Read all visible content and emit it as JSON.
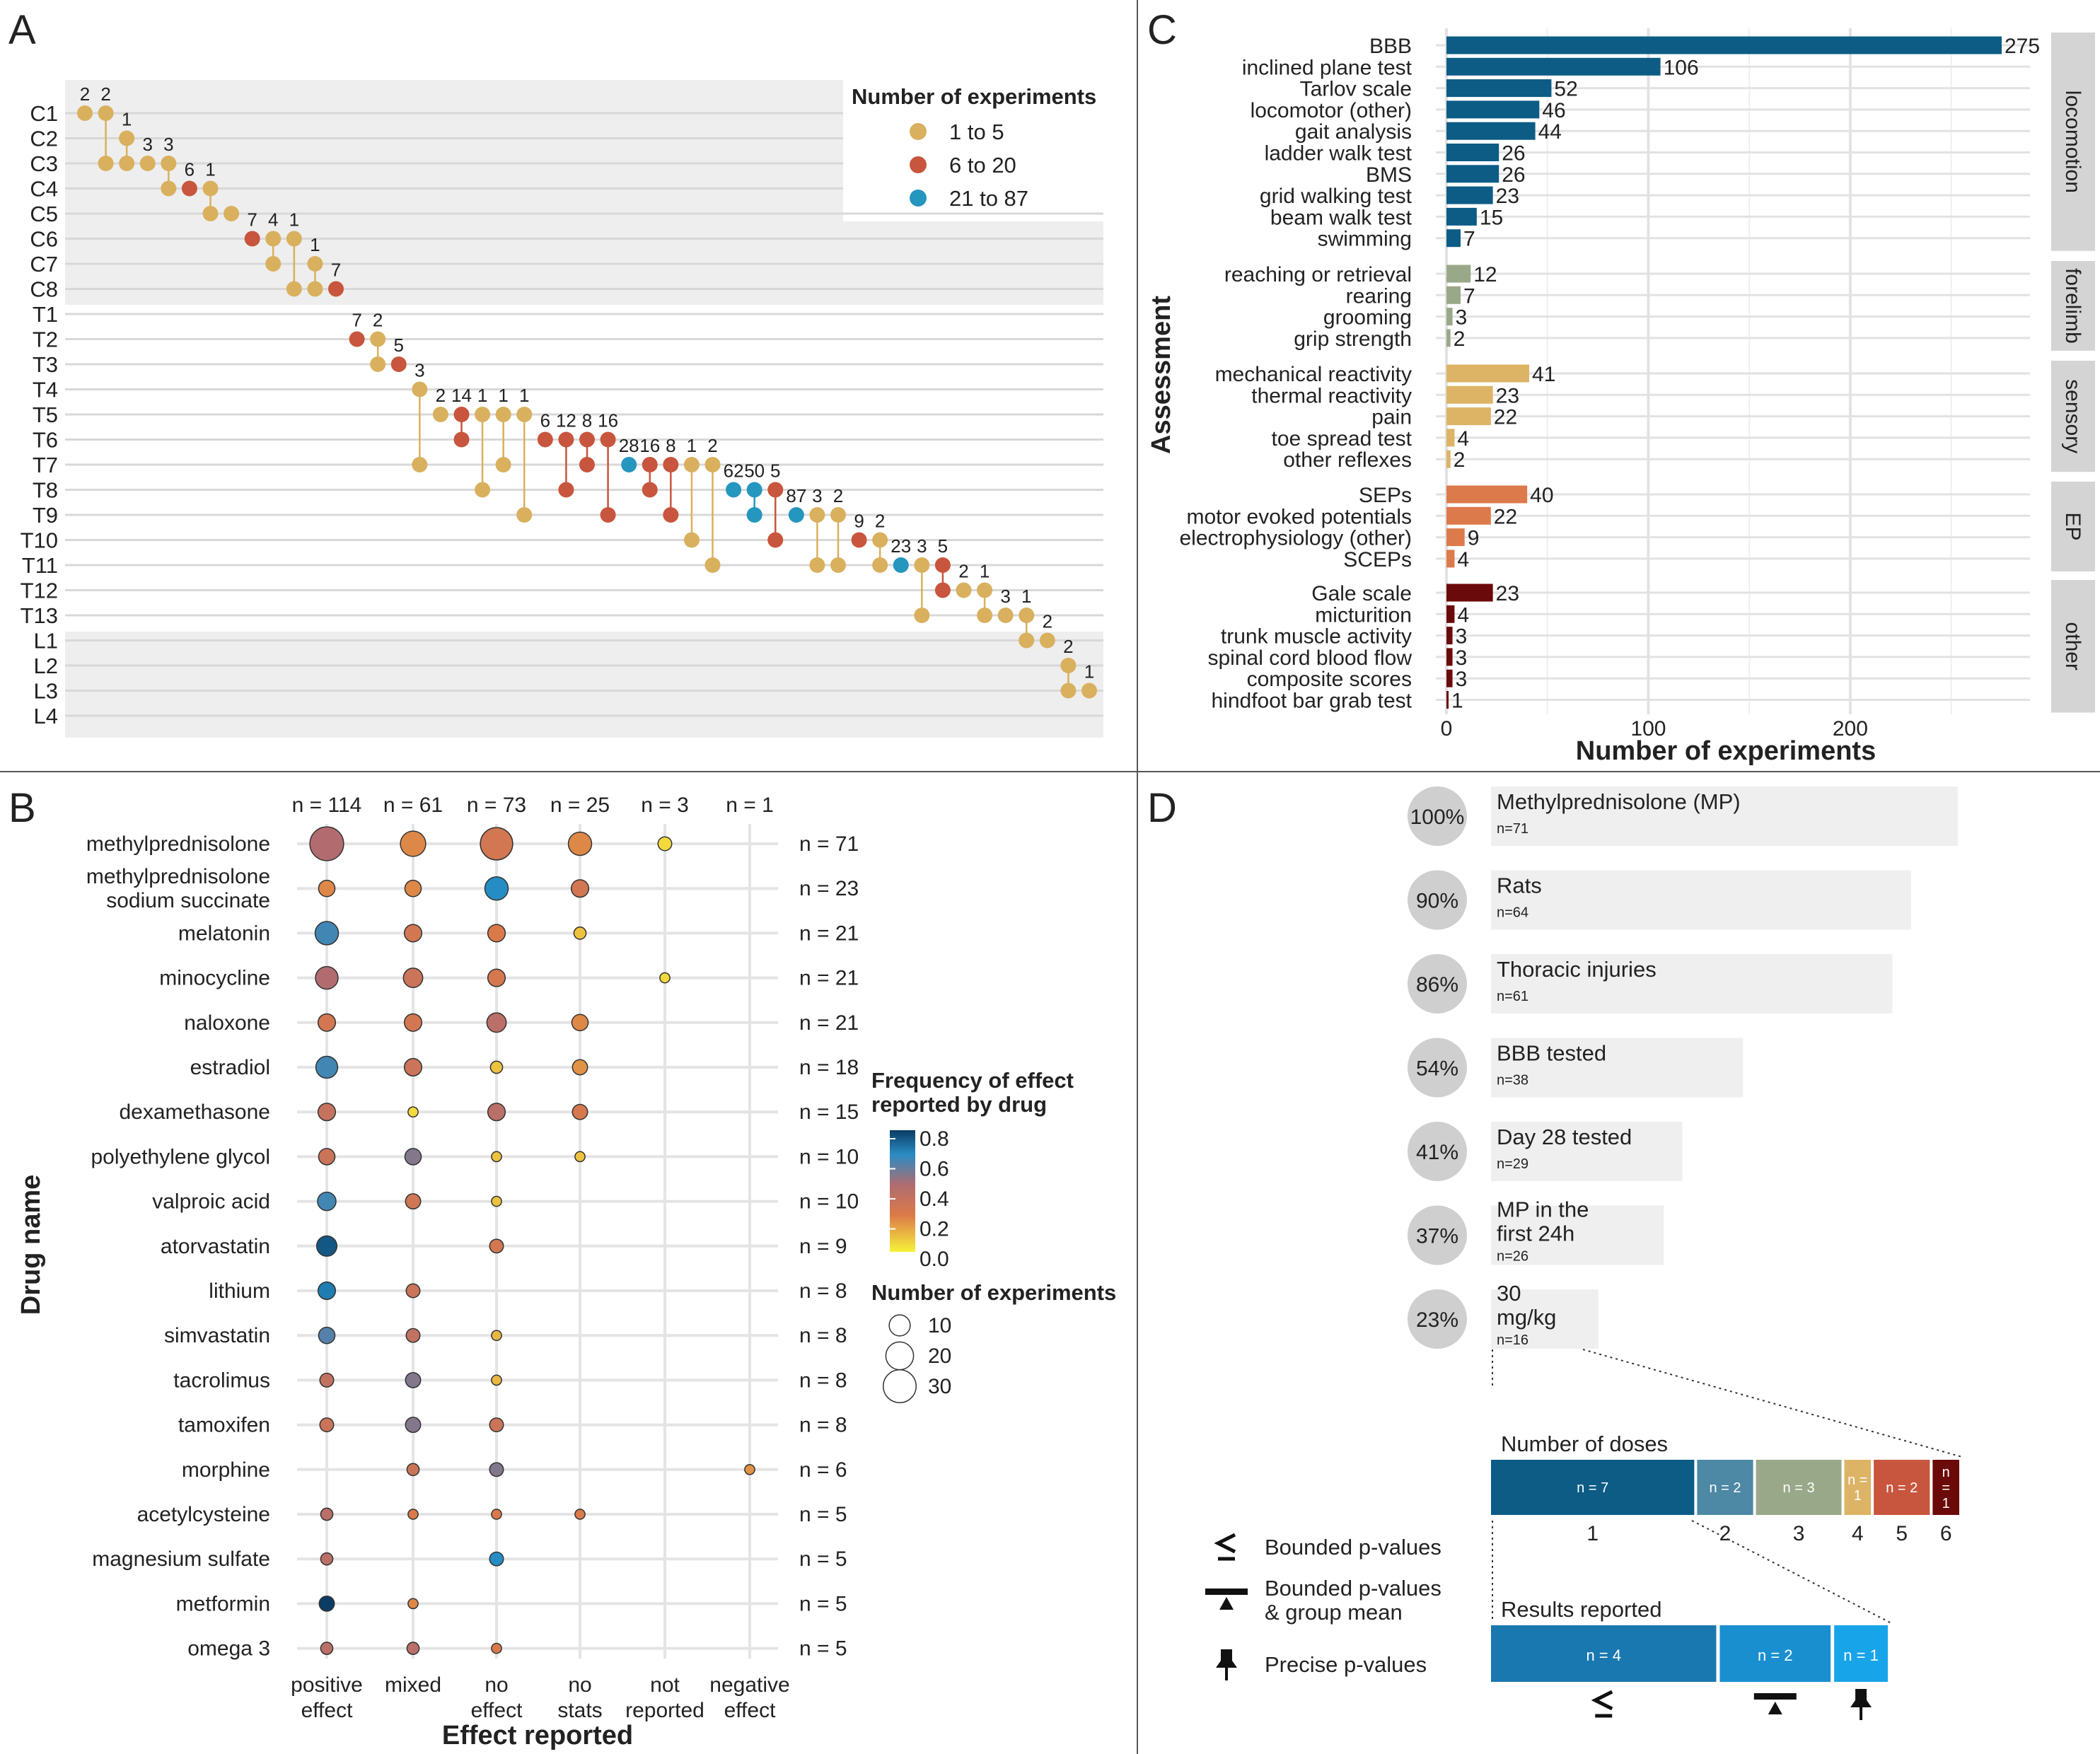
{
  "panel_labels": [
    "A",
    "B",
    "C",
    "D"
  ],
  "colors": {
    "tan": "#d9b05e",
    "rust": "#c8553d",
    "teal": "#2596be",
    "locomotion": "#0c5c86",
    "forelimb": "#9aa88a",
    "sensory": "#ddb366",
    "EP": "#dd7a4b",
    "other": "#6b0a0a",
    "grey_band": "#eeeeee",
    "strip": "#d4d4d4",
    "gridline": "#d8d8d8"
  },
  "chart_data": [
    {
      "panel": "A",
      "type": "scatter",
      "y_categories": [
        "C1",
        "C2",
        "C3",
        "C4",
        "C5",
        "C6",
        "C7",
        "C8",
        "T1",
        "T2",
        "T3",
        "T4",
        "T5",
        "T6",
        "T7",
        "T8",
        "T9",
        "T10",
        "T11",
        "T12",
        "T13",
        "L1",
        "L2",
        "L3",
        "L4"
      ],
      "legend_title": "Number of experiments",
      "legend_items": [
        {
          "label": "1 to 5",
          "color": "#d9b05e"
        },
        {
          "label": "6 to 20",
          "color": "#c8553d"
        },
        {
          "label": "21 to 87",
          "color": "#2596be"
        }
      ],
      "points": [
        {
          "label": "2",
          "levels": [
            "C1"
          ],
          "cls": 1
        },
        {
          "label": "2",
          "levels": [
            "C1",
            "C3"
          ],
          "cls": 1
        },
        {
          "label": "1",
          "levels": [
            "C2",
            "C3"
          ],
          "cls": 1
        },
        {
          "label": "3",
          "levels": [
            "C3"
          ],
          "cls": 1
        },
        {
          "label": "3",
          "levels": [
            "C3",
            "C4"
          ],
          "cls": 1
        },
        {
          "label": "6",
          "levels": [
            "C4"
          ],
          "cls": 2
        },
        {
          "label": "1",
          "levels": [
            "C4",
            "C5"
          ],
          "cls": 1
        },
        {
          "label": "",
          "levels": [
            "C5"
          ],
          "cls": 1
        },
        {
          "label": "7",
          "levels": [
            "C6"
          ],
          "cls": 2
        },
        {
          "label": "4",
          "levels": [
            "C6",
            "C7"
          ],
          "cls": 1
        },
        {
          "label": "1",
          "levels": [
            "C6",
            "C8"
          ],
          "cls": 1
        },
        {
          "label": "1",
          "levels": [
            "C7",
            "C8"
          ],
          "cls": 1
        },
        {
          "label": "7",
          "levels": [
            "C8"
          ],
          "cls": 2
        },
        {
          "label": "7",
          "levels": [
            "T2"
          ],
          "cls": 2
        },
        {
          "label": "2",
          "levels": [
            "T2",
            "T3"
          ],
          "cls": 1
        },
        {
          "label": "5",
          "levels": [
            "T3"
          ],
          "cls": 2
        },
        {
          "label": "3",
          "levels": [
            "T4",
            "T7"
          ],
          "cls": 1
        },
        {
          "label": "2",
          "levels": [
            "T5"
          ],
          "cls": 1
        },
        {
          "label": "14",
          "levels": [
            "T5",
            "T6"
          ],
          "cls": 2
        },
        {
          "label": "1",
          "levels": [
            "T5",
            "T8"
          ],
          "cls": 1
        },
        {
          "label": "1",
          "levels": [
            "T5",
            "T7"
          ],
          "cls": 1
        },
        {
          "label": "1",
          "levels": [
            "T5",
            "T9"
          ],
          "cls": 1
        },
        {
          "label": "6",
          "levels": [
            "T6"
          ],
          "cls": 2
        },
        {
          "label": "12",
          "levels": [
            "T6",
            "T8"
          ],
          "cls": 2
        },
        {
          "label": "8",
          "levels": [
            "T6",
            "T7"
          ],
          "cls": 2
        },
        {
          "label": "16",
          "levels": [
            "T6",
            "T9"
          ],
          "cls": 2
        },
        {
          "label": "28",
          "levels": [
            "T7"
          ],
          "cls": 3
        },
        {
          "label": "16",
          "levels": [
            "T7",
            "T8"
          ],
          "cls": 2
        },
        {
          "label": "8",
          "levels": [
            "T7",
            "T9"
          ],
          "cls": 2
        },
        {
          "label": "1",
          "levels": [
            "T7",
            "T10"
          ],
          "cls": 1
        },
        {
          "label": "2",
          "levels": [
            "T7",
            "T11"
          ],
          "cls": 1
        },
        {
          "label": "62",
          "levels": [
            "T8"
          ],
          "cls": 3
        },
        {
          "label": "50",
          "levels": [
            "T8",
            "T9"
          ],
          "cls": 3
        },
        {
          "label": "5",
          "levels": [
            "T8",
            "T10"
          ],
          "cls": 2
        },
        {
          "label": "87",
          "levels": [
            "T9"
          ],
          "cls": 3
        },
        {
          "label": "3",
          "levels": [
            "T9",
            "T11"
          ],
          "cls": 1
        },
        {
          "label": "2",
          "levels": [
            "T9",
            "T11"
          ],
          "cls": 1
        },
        {
          "label": "9",
          "levels": [
            "T10"
          ],
          "cls": 2
        },
        {
          "label": "2",
          "levels": [
            "T10",
            "T11"
          ],
          "cls": 1
        },
        {
          "label": "23",
          "levels": [
            "T11"
          ],
          "cls": 3
        },
        {
          "label": "3",
          "levels": [
            "T11",
            "T13"
          ],
          "cls": 1
        },
        {
          "label": "5",
          "levels": [
            "T11",
            "T12"
          ],
          "cls": 2
        },
        {
          "label": "2",
          "levels": [
            "T12"
          ],
          "cls": 1
        },
        {
          "label": "1",
          "levels": [
            "T12",
            "T13"
          ],
          "cls": 1
        },
        {
          "label": "3",
          "levels": [
            "T13"
          ],
          "cls": 1
        },
        {
          "label": "1",
          "levels": [
            "T13",
            "L1"
          ],
          "cls": 1
        },
        {
          "label": "2",
          "levels": [
            "L1"
          ],
          "cls": 1
        },
        {
          "label": "2",
          "levels": [
            "L2",
            "L3"
          ],
          "cls": 1
        },
        {
          "label": "1",
          "levels": [
            "L3"
          ],
          "cls": 1
        }
      ]
    },
    {
      "panel": "B",
      "type": "scatter",
      "xlabel": "Effect reported",
      "ylabel": "Drug name",
      "x_categories": [
        "positive\neffect",
        "mixed",
        "no\neffect",
        "no\nstats",
        "not\nreported",
        "negative\neffect"
      ],
      "col_n": [
        "n = 114",
        "n = 61",
        "n = 73",
        "n = 25",
        "n = 3",
        "n = 1"
      ],
      "drugs": [
        "methylprednisolone",
        "methylprednisolone\nsodium succinate",
        "melatonin",
        "minocycline",
        "naloxone",
        "estradiol",
        "dexamethasone",
        "polyethylene glycol",
        "valproic acid",
        "atorvastatin",
        "lithium",
        "simvastatin",
        "tacrolimus",
        "tamoxifen",
        "morphine",
        "acetylcysteine",
        "magnesium sulfate",
        "metformin",
        "omega 3"
      ],
      "row_n": [
        "n = 71",
        "n = 23",
        "n = 21",
        "n = 21",
        "n = 21",
        "n = 18",
        "n = 15",
        "n = 10",
        "n = 10",
        "n = 9",
        "n = 8",
        "n = 8",
        "n = 8",
        "n = 8",
        "n = 6",
        "n = 5",
        "n = 5",
        "n = 5",
        "n = 5"
      ],
      "color_legend_title": "Frequency of effect\nreported by drug",
      "color_ticks": [
        "0.8",
        "0.6",
        "0.4",
        "0.2",
        "0.0"
      ],
      "size_legend_title": "Number of experiments",
      "size_ticks": [
        "10",
        "20",
        "30"
      ],
      "cells": [
        [
          0,
          0,
          32,
          0.5
        ],
        [
          0,
          1,
          16,
          0.22
        ],
        [
          0,
          2,
          29,
          0.3
        ],
        [
          0,
          3,
          13,
          0.22
        ],
        [
          0,
          4,
          3,
          0.05
        ],
        [
          1,
          0,
          5,
          0.22
        ],
        [
          1,
          1,
          5,
          0.22
        ],
        [
          1,
          2,
          13,
          0.65
        ],
        [
          1,
          3,
          6,
          0.3
        ],
        [
          2,
          0,
          13,
          0.62
        ],
        [
          2,
          1,
          6,
          0.3
        ],
        [
          2,
          2,
          6,
          0.25
        ],
        [
          2,
          3,
          2,
          0.1
        ],
        [
          3,
          0,
          12,
          0.5
        ],
        [
          3,
          1,
          8,
          0.35
        ],
        [
          3,
          2,
          6,
          0.28
        ],
        [
          3,
          4,
          1,
          0.05
        ],
        [
          4,
          0,
          6,
          0.3
        ],
        [
          4,
          1,
          6,
          0.3
        ],
        [
          4,
          2,
          8,
          0.45
        ],
        [
          4,
          3,
          5,
          0.22
        ],
        [
          5,
          0,
          11,
          0.62
        ],
        [
          5,
          1,
          6,
          0.35
        ],
        [
          5,
          2,
          2,
          0.1
        ],
        [
          5,
          3,
          4,
          0.2
        ],
        [
          6,
          0,
          6,
          0.38
        ],
        [
          6,
          1,
          1,
          0.05
        ],
        [
          6,
          2,
          6,
          0.45
        ],
        [
          6,
          3,
          4,
          0.28
        ],
        [
          7,
          0,
          5,
          0.35
        ],
        [
          7,
          1,
          5,
          0.55
        ],
        [
          7,
          2,
          1,
          0.1
        ],
        [
          7,
          3,
          1,
          0.1
        ],
        [
          8,
          0,
          7,
          0.62
        ],
        [
          8,
          1,
          4,
          0.32
        ],
        [
          8,
          2,
          1,
          0.1
        ],
        [
          9,
          0,
          9,
          0.75
        ],
        [
          9,
          2,
          3,
          0.3
        ],
        [
          10,
          0,
          6,
          0.68
        ],
        [
          10,
          1,
          3,
          0.35
        ],
        [
          11,
          0,
          5,
          0.6
        ],
        [
          11,
          1,
          3,
          0.4
        ],
        [
          11,
          2,
          1,
          0.12
        ],
        [
          12,
          0,
          3,
          0.4
        ],
        [
          12,
          1,
          4,
          0.55
        ],
        [
          12,
          2,
          1,
          0.12
        ],
        [
          13,
          0,
          3,
          0.35
        ],
        [
          13,
          1,
          4,
          0.55
        ],
        [
          13,
          2,
          3,
          0.35
        ],
        [
          14,
          1,
          2,
          0.35
        ],
        [
          14,
          2,
          3,
          0.55
        ],
        [
          14,
          5,
          1,
          0.2
        ],
        [
          15,
          0,
          2,
          0.45
        ],
        [
          15,
          1,
          1,
          0.25
        ],
        [
          15,
          2,
          1,
          0.25
        ],
        [
          15,
          3,
          1,
          0.25
        ],
        [
          16,
          0,
          2,
          0.45
        ],
        [
          16,
          2,
          3,
          0.65
        ],
        [
          17,
          0,
          4,
          0.8
        ],
        [
          17,
          1,
          1,
          0.22
        ],
        [
          18,
          0,
          2,
          0.45
        ],
        [
          18,
          1,
          2,
          0.45
        ],
        [
          18,
          2,
          1,
          0.25
        ]
      ]
    },
    {
      "panel": "C",
      "type": "bar",
      "orientation": "horizontal",
      "xlabel": "Number of experiments",
      "ylabel": "Assessment",
      "xlim": [
        0,
        285
      ],
      "xticks": [
        0,
        100,
        200
      ],
      "groups": [
        {
          "name": "locomotion",
          "color": "#0c5c86",
          "categories": [
            "BBB",
            "inclined plane test",
            "Tarlov scale",
            "locomotor (other)",
            "gait analysis",
            "ladder walk test",
            "BMS",
            "grid walking test",
            "beam walk test",
            "swimming"
          ],
          "values": [
            275,
            106,
            52,
            46,
            44,
            26,
            26,
            23,
            15,
            7
          ]
        },
        {
          "name": "forelimb",
          "color": "#9aa88a",
          "categories": [
            "reaching or retrieval",
            "rearing",
            "grooming",
            "grip strength"
          ],
          "values": [
            12,
            7,
            3,
            2
          ]
        },
        {
          "name": "sensory",
          "color": "#ddb366",
          "categories": [
            "mechanical reactivity",
            "thermal reactivity",
            "pain",
            "toe spread test",
            "other reflexes"
          ],
          "values": [
            41,
            23,
            22,
            4,
            2
          ]
        },
        {
          "name": "EP",
          "color": "#dd7a4b",
          "categories": [
            "SEPs",
            "motor evoked potentials",
            "electrophysiology (other)",
            "SCEPs"
          ],
          "values": [
            40,
            22,
            9,
            4
          ]
        },
        {
          "name": "other",
          "color": "#6b0a0a",
          "categories": [
            "Gale scale",
            "micturition",
            "trunk muscle activity",
            "spinal cord blood flow",
            "composite scores",
            "hindfoot bar grab test"
          ],
          "values": [
            23,
            4,
            3,
            3,
            3,
            1
          ]
        }
      ]
    },
    {
      "panel": "D",
      "type": "bar",
      "orientation": "horizontal",
      "funnel": [
        {
          "pct": "100%",
          "title": "Methylprednisolone (MP)",
          "n": "n=71",
          "value": 100
        },
        {
          "pct": "90%",
          "title": "Rats",
          "n": "n=64",
          "value": 90
        },
        {
          "pct": "86%",
          "title": "Thoracic injuries",
          "n": "n=61",
          "value": 86
        },
        {
          "pct": "54%",
          "title": "BBB tested",
          "n": "n=38",
          "value": 54
        },
        {
          "pct": "41%",
          "title": "Day 28 tested",
          "n": "n=29",
          "value": 41
        },
        {
          "pct": "37%",
          "title": "MP in the\nfirst 24h",
          "n": "n=26",
          "value": 37
        },
        {
          "pct": "23%",
          "title": "30\nmg/kg",
          "n": "n=16",
          "value": 23
        }
      ],
      "doses_title": "Number of doses",
      "doses": [
        {
          "tick": "1",
          "label": "n = 7",
          "value": 7,
          "color": "#0c5c86"
        },
        {
          "tick": "2",
          "label": "n = 2",
          "value": 2,
          "color": "#4d88a4"
        },
        {
          "tick": "3",
          "label": "n = 3",
          "value": 3,
          "color": "#9aa88a"
        },
        {
          "tick": "4",
          "label": "n =\n1",
          "value": 1,
          "color": "#ddb366"
        },
        {
          "tick": "5",
          "label": "n = 2",
          "value": 2,
          "color": "#c8553d"
        },
        {
          "tick": "6",
          "label": "n\n=\n1",
          "value": 1,
          "color": "#6b0a0a"
        }
      ],
      "results_title": "Results reported",
      "results": [
        {
          "label": "n = 4",
          "value": 4,
          "color": "#1a78b0"
        },
        {
          "label": "n = 2",
          "value": 2,
          "color": "#1a8fd0"
        },
        {
          "label": "n = 1",
          "value": 1,
          "color": "#18a4e8"
        }
      ],
      "legend": [
        {
          "icon": "bounded-icon",
          "text": "Bounded p-values"
        },
        {
          "icon": "group-mean-icon",
          "text": "Bounded p-values\n& group mean"
        },
        {
          "icon": "pin-icon",
          "text": "Precise p-values"
        }
      ]
    }
  ]
}
